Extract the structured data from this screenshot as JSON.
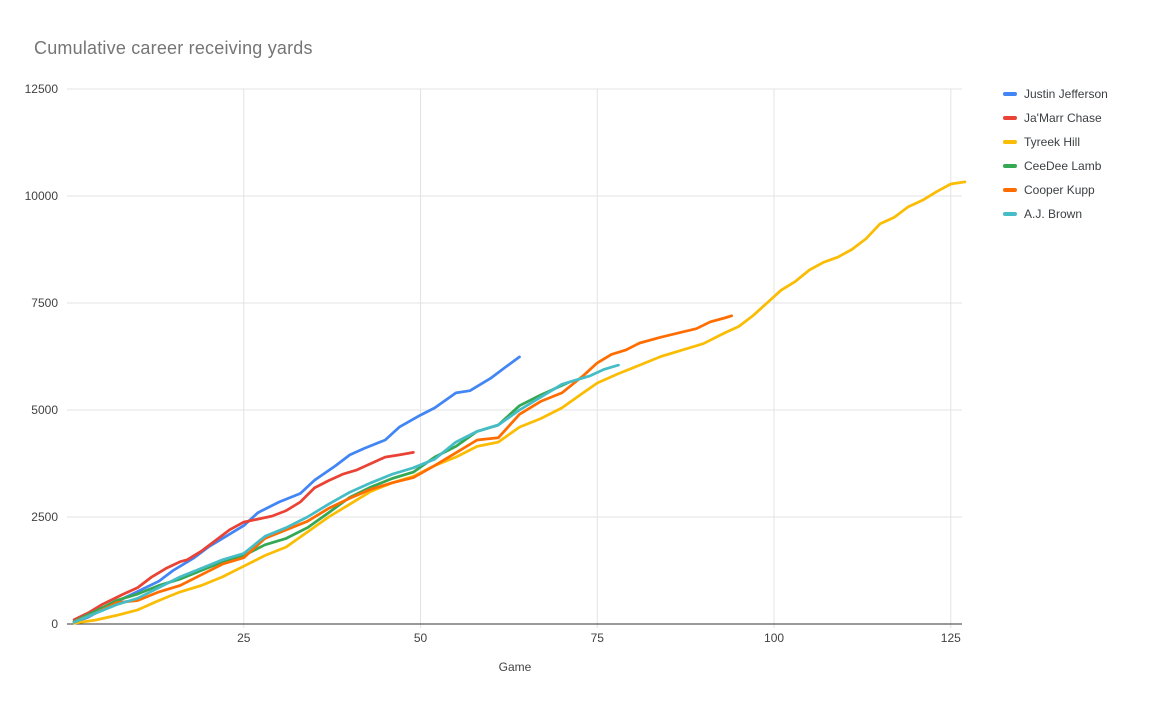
{
  "title": "Cumulative career receiving yards",
  "colors": {
    "background": "#ffffff",
    "title_text": "#757575",
    "axis_text": "#424242",
    "legend_text": "#3c4043",
    "gridline": "#e3e3e3",
    "baseline": "#333333"
  },
  "chart_data": {
    "type": "line",
    "title": "Cumulative career receiving yards",
    "xlabel": "Game",
    "ylabel": "",
    "xlim": [
      0,
      128
    ],
    "ylim": [
      0,
      12500
    ],
    "x_ticks": [
      25,
      50,
      75,
      100,
      125
    ],
    "y_ticks": [
      0,
      2500,
      5000,
      7500,
      10000,
      12500
    ],
    "grid": true,
    "legend_position": "right",
    "series": [
      {
        "name": "Justin Jefferson",
        "color": "#4285F4",
        "x": [
          1,
          3,
          5,
          8,
          10,
          13,
          15,
          18,
          20,
          22,
          25,
          27,
          30,
          33,
          35,
          38,
          40,
          42,
          45,
          47,
          50,
          52,
          55,
          57,
          60,
          62,
          64
        ],
        "y": [
          40,
          160,
          340,
          600,
          760,
          1000,
          1250,
          1550,
          1800,
          2000,
          2300,
          2600,
          2850,
          3050,
          3360,
          3700,
          3950,
          4100,
          4300,
          4600,
          4880,
          5050,
          5400,
          5450,
          5750,
          6000,
          6240
        ]
      },
      {
        "name": "Ja'Marr Chase",
        "color": "#EA4335",
        "x": [
          1,
          3,
          5,
          8,
          10,
          12,
          14,
          16,
          17,
          19,
          21,
          23,
          25,
          27,
          29,
          31,
          33,
          35,
          37,
          39,
          41,
          43,
          45,
          47,
          49
        ],
        "y": [
          100,
          260,
          460,
          700,
          850,
          1100,
          1300,
          1455,
          1500,
          1700,
          1950,
          2200,
          2380,
          2450,
          2520,
          2650,
          2850,
          3180,
          3350,
          3500,
          3600,
          3750,
          3900,
          3950,
          4010
        ]
      },
      {
        "name": "Tyreek Hill",
        "color": "#FBBC04",
        "x": [
          1,
          4,
          7,
          10,
          13,
          16,
          19,
          22,
          25,
          28,
          31,
          34,
          37,
          40,
          43,
          46,
          49,
          52,
          55,
          58,
          61,
          64,
          67,
          70,
          73,
          75,
          78,
          81,
          84,
          87,
          90,
          93,
          95,
          97,
          99,
          101,
          103,
          105,
          107,
          109,
          111,
          113,
          115,
          117,
          119,
          121,
          123,
          125,
          127
        ],
        "y": [
          20,
          90,
          200,
          330,
          550,
          750,
          900,
          1100,
          1350,
          1600,
          1800,
          2150,
          2500,
          2800,
          3100,
          3300,
          3450,
          3700,
          3900,
          4150,
          4250,
          4600,
          4800,
          5050,
          5400,
          5630,
          5850,
          6050,
          6250,
          6400,
          6550,
          6800,
          6950,
          7200,
          7500,
          7800,
          8000,
          8270,
          8450,
          8570,
          8750,
          9000,
          9350,
          9500,
          9750,
          9900,
          10100,
          10280,
          10330
        ]
      },
      {
        "name": "CeeDee Lamb",
        "color": "#34A853",
        "x": [
          1,
          4,
          7,
          10,
          13,
          16,
          19,
          22,
          25,
          28,
          31,
          34,
          37,
          40,
          43,
          46,
          49,
          52,
          55,
          58,
          61,
          64,
          67,
          69,
          71
        ],
        "y": [
          60,
          300,
          550,
          700,
          900,
          1050,
          1250,
          1450,
          1600,
          1850,
          2000,
          2250,
          2600,
          2960,
          3200,
          3400,
          3550,
          3900,
          4150,
          4500,
          4650,
          5100,
          5350,
          5500,
          5650
        ]
      },
      {
        "name": "Cooper Kupp",
        "color": "#FF6D01",
        "x": [
          1,
          4,
          7,
          10,
          13,
          16,
          19,
          22,
          25,
          28,
          31,
          34,
          37,
          40,
          43,
          46,
          49,
          52,
          55,
          58,
          61,
          64,
          67,
          70,
          73,
          75,
          77,
          79,
          81,
          84,
          87,
          89,
          91,
          93,
          94
        ],
        "y": [
          50,
          250,
          500,
          550,
          750,
          900,
          1150,
          1400,
          1550,
          2000,
          2200,
          2400,
          2700,
          2940,
          3150,
          3300,
          3420,
          3700,
          4000,
          4300,
          4350,
          4900,
          5200,
          5400,
          5800,
          6100,
          6300,
          6400,
          6565,
          6700,
          6820,
          6900,
          7060,
          7150,
          7200
        ]
      },
      {
        "name": "A.J. Brown",
        "color": "#46BDC6",
        "x": [
          1,
          4,
          7,
          10,
          13,
          16,
          19,
          22,
          25,
          28,
          31,
          34,
          37,
          40,
          43,
          46,
          49,
          52,
          55,
          58,
          61,
          64,
          67,
          70,
          72,
          74,
          76,
          78
        ],
        "y": [
          40,
          250,
          450,
          600,
          850,
          1100,
          1300,
          1500,
          1650,
          2050,
          2250,
          2500,
          2800,
          3080,
          3300,
          3500,
          3650,
          3850,
          4250,
          4500,
          4650,
          5000,
          5300,
          5600,
          5700,
          5800,
          5950,
          6050
        ]
      }
    ]
  }
}
